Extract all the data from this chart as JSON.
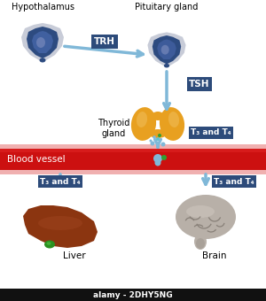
{
  "bg_color": "#ffffff",
  "labels": {
    "hypothalamus": "Hypothalamus",
    "pituitary": "Pituitary gland",
    "thyroid": "Thyroid\ngland",
    "blood_vessel": "Blood vessel",
    "liver": "Liver",
    "brain": "Brain",
    "trh": "TRH",
    "tsh": "TSH",
    "t3t4_thyroid": "T₃ and T₄",
    "t3t4_left": "T₃ and T₄",
    "t3t4_right": "T₃ and T₄"
  },
  "colors": {
    "dark_blue": "#2d4b7a",
    "medium_blue": "#3d5b9a",
    "light_blue": "#a0c8e0",
    "arrow_blue": "#80b8d8",
    "blood_red": "#cc1010",
    "blood_light": "#f0b0b0",
    "thyroid_orange": "#e8a020",
    "thyroid_light": "#f0c060",
    "liver_brown": "#8b3510",
    "brain_gray": "#b8b0a8",
    "brain_dark": "#888078",
    "brain_light": "#d0c8c0",
    "label_box": "#2d4b7a",
    "label_text": "#ffffff",
    "hypo_blue_dark": "#2d4b80",
    "hypo_blue_med": "#4060a0",
    "hypo_blue_light": "#8090c0",
    "hypo_gray": "#c8ccd8",
    "dot_blue": "#80b8d8",
    "dot_green": "#30a030",
    "dot_cyan": "#60c0d0"
  },
  "watermark": "alamy - 2DHY5NG",
  "watermark_bg": "#111111",
  "watermark_text": "#ffffff"
}
